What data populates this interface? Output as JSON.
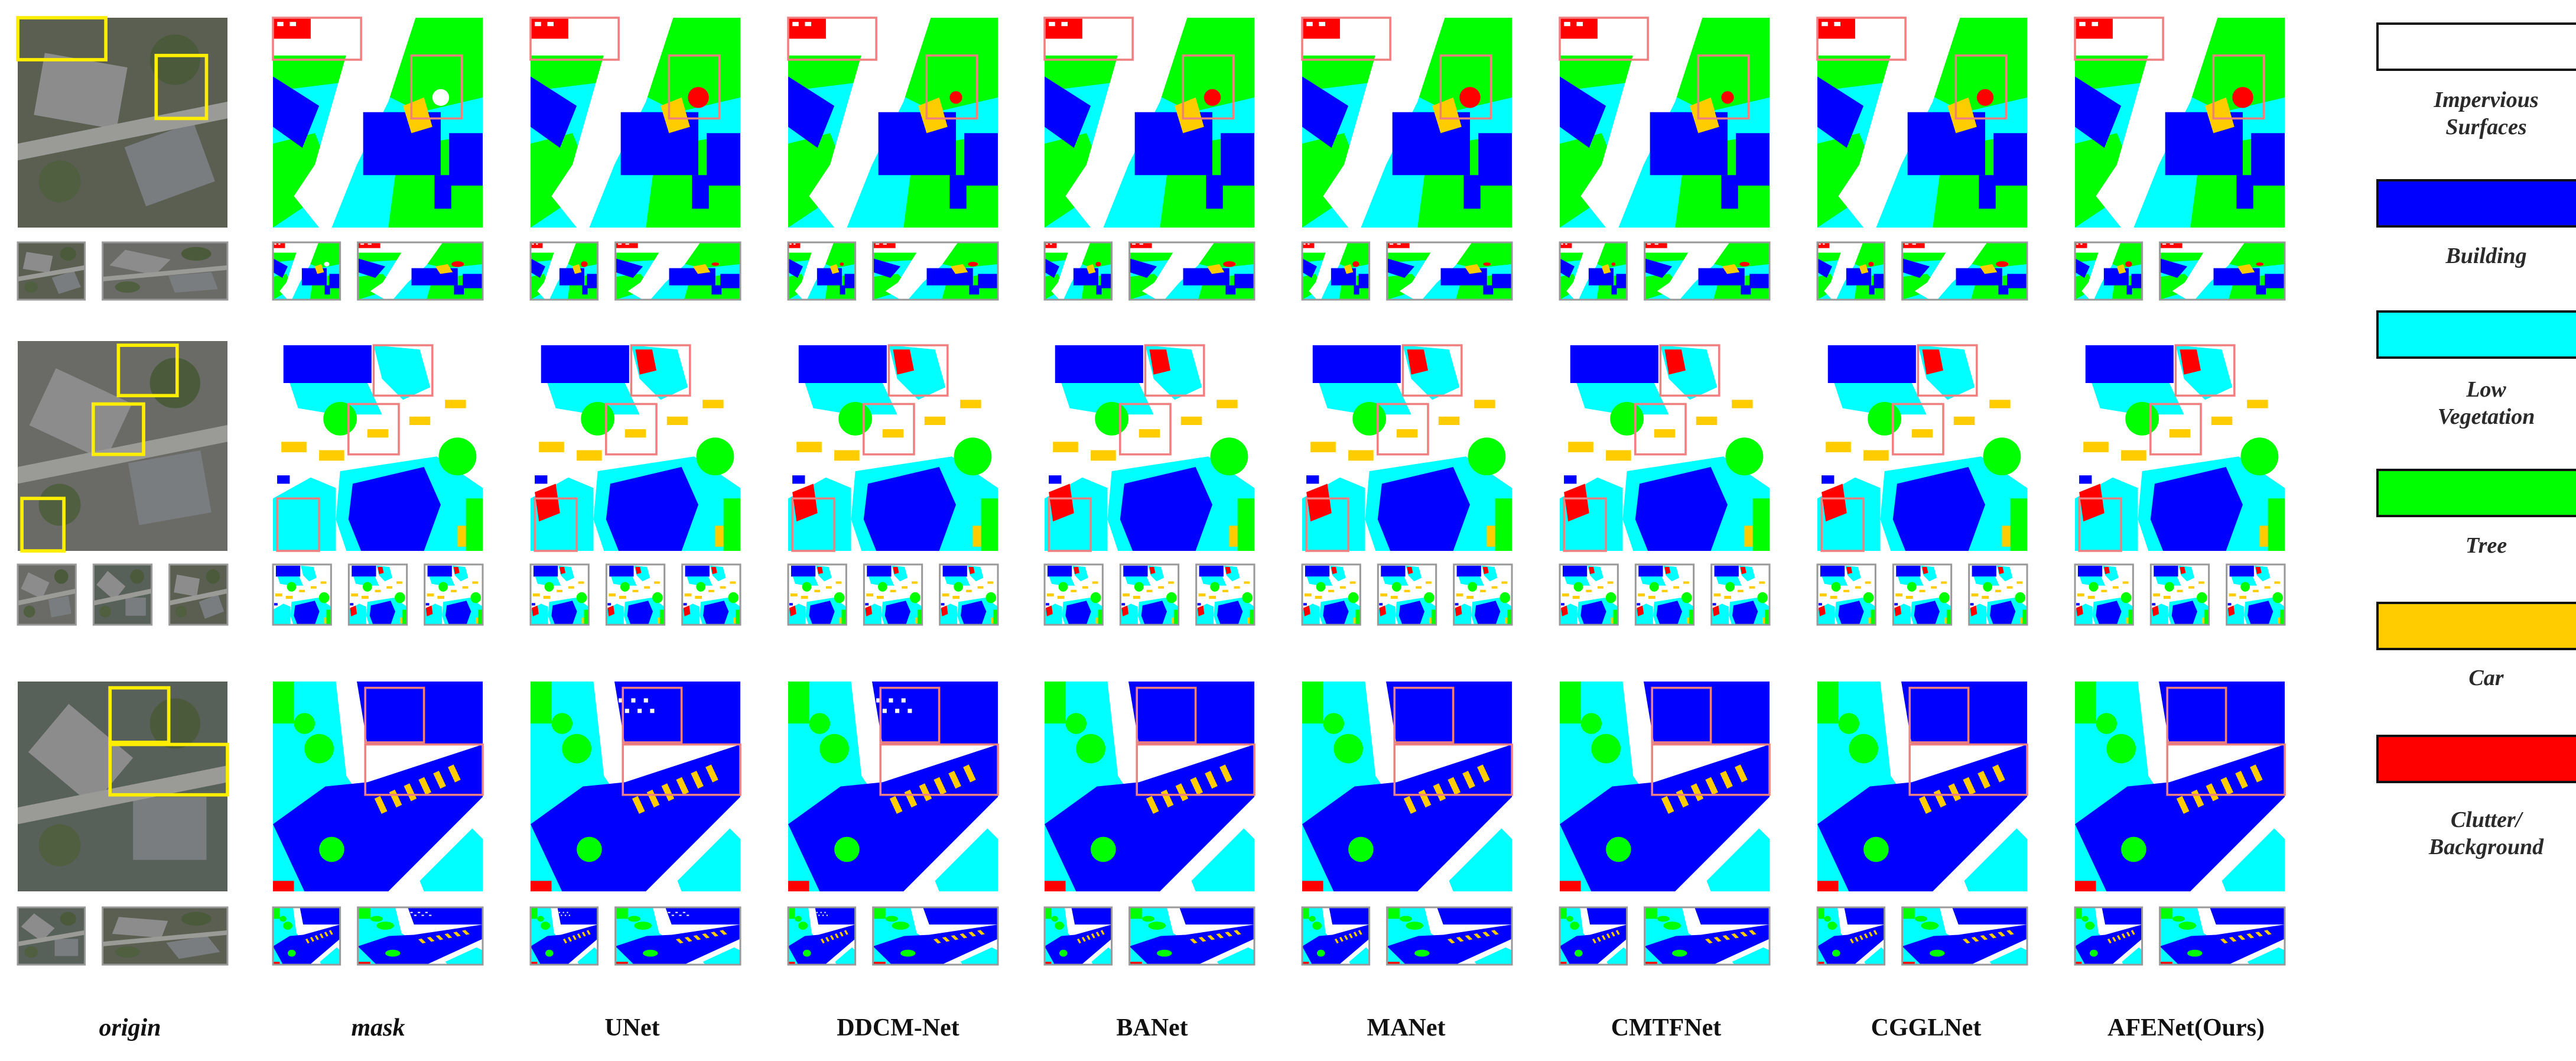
{
  "columns": [
    {
      "label": "origin"
    },
    {
      "label": "mask"
    },
    {
      "label": "UNet"
    },
    {
      "label": "DDCM-Net"
    },
    {
      "label": "BANet"
    },
    {
      "label": "MANet"
    },
    {
      "label": "CMTFNet"
    },
    {
      "label": "CGGLNet"
    },
    {
      "label": "AFENet(Ours)"
    }
  ],
  "legend": [
    {
      "label_lines": [
        "Impervious",
        "Surfaces"
      ],
      "color": "#ffffff"
    },
    {
      "label_lines": [
        "Building"
      ],
      "color": "#0000ff"
    },
    {
      "label_lines": [
        "Low",
        "Vegetation"
      ],
      "color": "#00ffff"
    },
    {
      "label_lines": [
        "Tree"
      ],
      "color": "#00ff00"
    },
    {
      "label_lines": [
        "Car"
      ],
      "color": "#ffcc00"
    },
    {
      "label_lines": [
        "Clutter/",
        "Background"
      ],
      "color": "#ff0000"
    }
  ],
  "colors": {
    "impervious": "#ffffff",
    "building": "#0000ff",
    "low_vegetation": "#00ffff",
    "tree": "#00ff00",
    "car": "#ffcc00",
    "clutter": "#ff0000",
    "highlight_box_origin": "#ffee00",
    "highlight_box_pred": "#f08080"
  }
}
